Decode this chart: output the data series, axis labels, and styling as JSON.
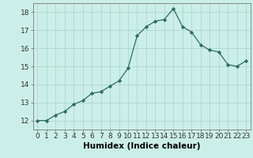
{
  "x": [
    0,
    1,
    2,
    3,
    4,
    5,
    6,
    7,
    8,
    9,
    10,
    11,
    12,
    13,
    14,
    15,
    16,
    17,
    18,
    19,
    20,
    21,
    22,
    23
  ],
  "y": [
    12.0,
    12.0,
    12.3,
    12.5,
    12.9,
    13.1,
    13.5,
    13.6,
    13.9,
    14.2,
    14.9,
    16.7,
    17.2,
    17.5,
    17.6,
    18.2,
    17.2,
    16.9,
    16.2,
    15.9,
    15.8,
    15.1,
    15.0,
    15.3
  ],
  "xlabel": "Humidex (Indice chaleur)",
  "xlim": [
    -0.5,
    23.5
  ],
  "ylim": [
    11.5,
    18.5
  ],
  "yticks": [
    12,
    13,
    14,
    15,
    16,
    17,
    18
  ],
  "xticks": [
    0,
    1,
    2,
    3,
    4,
    5,
    6,
    7,
    8,
    9,
    10,
    11,
    12,
    13,
    14,
    15,
    16,
    17,
    18,
    19,
    20,
    21,
    22,
    23
  ],
  "line_color": "#2d6e5e",
  "bg_color": "#cceee8",
  "grid_color": "#aad8d0",
  "label_fontsize": 7.5,
  "tick_fontsize": 6.5
}
